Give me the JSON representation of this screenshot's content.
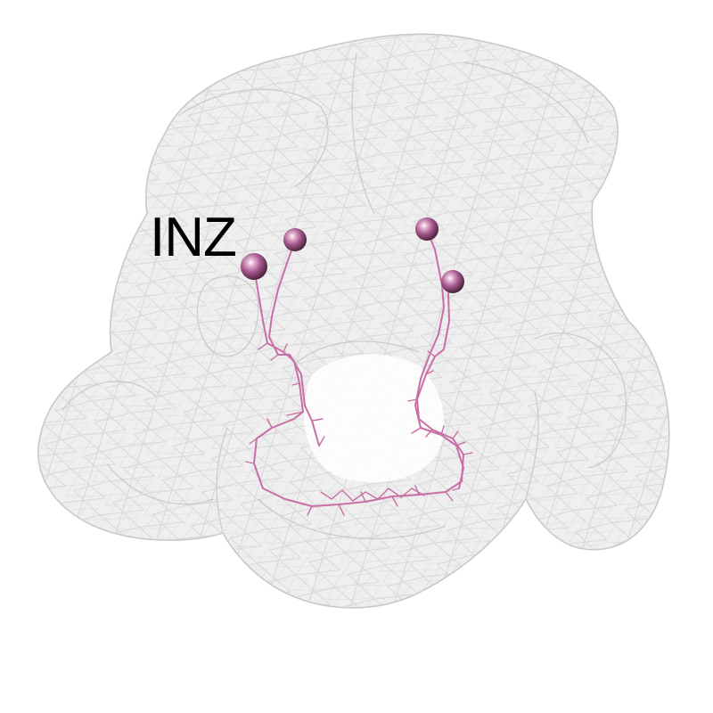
{
  "image": {
    "label": "INZ",
    "colors": {
      "background": "#ffffff",
      "brain_mesh_fill": "#ececec",
      "brain_mesh_stroke": "#c4c4c4",
      "neuron": "#c96fa6",
      "soma": "#a85a8e",
      "label": "#000000"
    }
  }
}
